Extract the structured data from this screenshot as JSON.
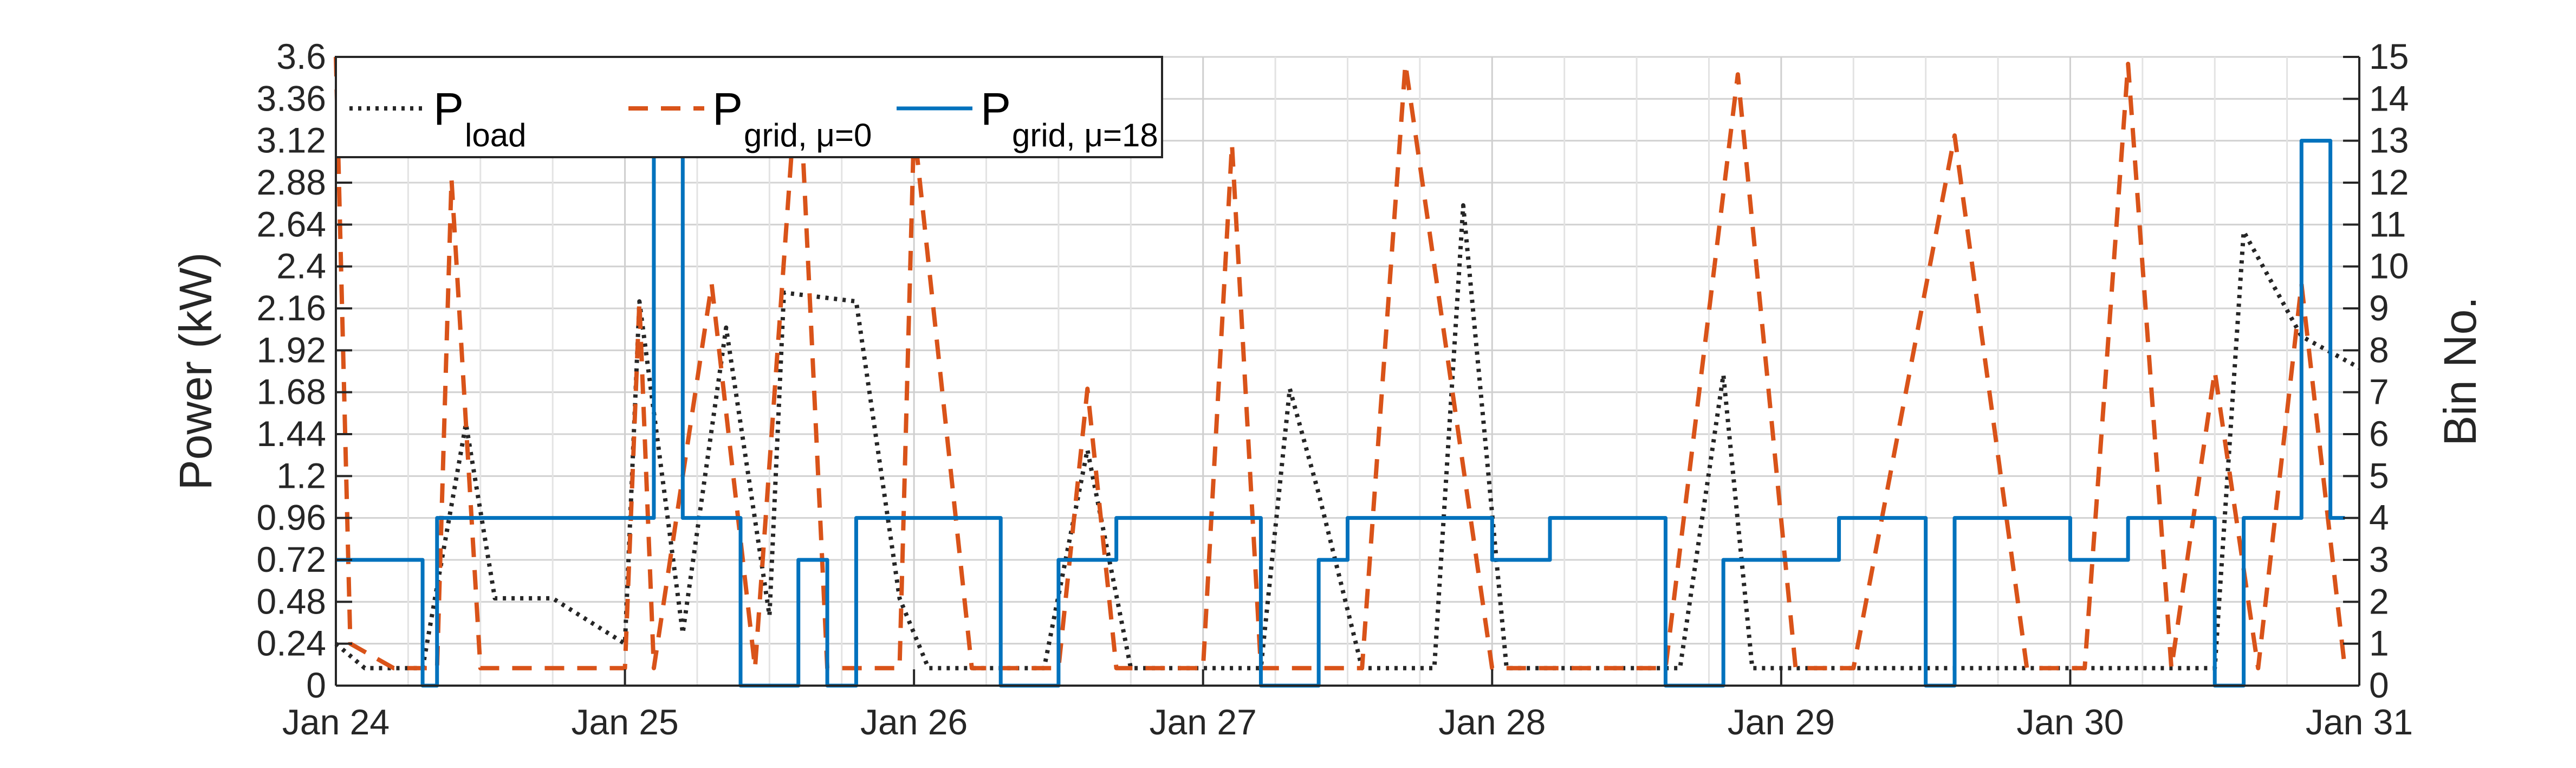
{
  "chart_data": {
    "type": "line",
    "ylabel": "Power (kW)",
    "y2label": "Bin No.",
    "xlim": [
      "Jan 24",
      "Jan 31"
    ],
    "x_ticks": [
      "Jan 24",
      "Jan 25",
      "Jan 26",
      "Jan 27",
      "Jan 28",
      "Jan 29",
      "Jan 30",
      "Jan 31"
    ],
    "ylim": [
      0,
      3.6
    ],
    "y_ticks": [
      "0",
      "0.24",
      "0.48",
      "0.72",
      "0.96",
      "1.2",
      "1.44",
      "1.68",
      "1.92",
      "2.16",
      "2.4",
      "2.64",
      "2.88",
      "3.12",
      "3.36",
      "3.6"
    ],
    "y2lim": [
      0,
      15
    ],
    "y2_ticks": [
      "0",
      "1",
      "2",
      "3",
      "4",
      "5",
      "6",
      "7",
      "8",
      "9",
      "10",
      "11",
      "12",
      "13",
      "14",
      "15"
    ],
    "grid": true,
    "legend_position": "top-left",
    "colors": {
      "load": "#262626",
      "grid_mu0": "#D95319",
      "grid_mu18": "#0072BD"
    },
    "legend": [
      {
        "key": "load",
        "main": "P",
        "sub": "load",
        "style": "dotted"
      },
      {
        "key": "grid_mu0",
        "main": "P",
        "sub": "grid, μ=0",
        "style": "dashed"
      },
      {
        "key": "grid_mu18",
        "main": "P",
        "sub": "grid, μ=18",
        "style": "solid"
      }
    ],
    "series": [
      {
        "key": "load",
        "axis": "left",
        "x": [
          0,
          0.1,
          0.3,
          0.45,
          0.55,
          0.75,
          1.0,
          1.05,
          1.2,
          1.35,
          1.5,
          1.55,
          1.8,
          1.95,
          2.05,
          2.3,
          2.45,
          2.6,
          2.75,
          2.8,
          2.95,
          3.1,
          3.2,
          3.3,
          3.4,
          3.55,
          3.7,
          3.8,
          3.9,
          4.05,
          4.2,
          4.35,
          4.5,
          4.65,
          4.8,
          4.9,
          5.05,
          5.15,
          5.3,
          5.45,
          5.6,
          5.75,
          5.9,
          6.05,
          6.2,
          6.35,
          6.45,
          6.5,
          6.6,
          6.8,
          7.0
        ],
        "y": [
          0.24,
          0.1,
          0.1,
          1.5,
          0.5,
          0.5,
          0.24,
          2.2,
          0.3,
          2.05,
          0.4,
          2.25,
          2.2,
          0.5,
          0.1,
          0.1,
          0.1,
          1.35,
          0.1,
          0.1,
          0.1,
          0.1,
          0.1,
          1.7,
          1.1,
          0.1,
          0.1,
          0.1,
          2.75,
          0.1,
          0.1,
          0.1,
          0.1,
          0.1,
          1.78,
          0.1,
          0.1,
          0.1,
          0.1,
          0.1,
          0.1,
          0.1,
          0.1,
          0.1,
          0.1,
          0.1,
          0.1,
          0.1,
          2.6,
          2.0,
          1.82
        ]
      },
      {
        "key": "grid_mu0",
        "axis": "left",
        "x": [
          0,
          0.05,
          0.2,
          0.35,
          0.4,
          0.5,
          0.6,
          0.8,
          0.9,
          1.0,
          1.05,
          1.1,
          1.3,
          1.45,
          1.6,
          1.7,
          1.85,
          1.95,
          2.0,
          2.2,
          2.5,
          2.6,
          2.7,
          3.0,
          3.1,
          3.2,
          3.4,
          3.55,
          3.7,
          4.0,
          4.4,
          4.6,
          4.85,
          5.05,
          5.25,
          5.6,
          5.85,
          6.05,
          6.2,
          6.35,
          6.5,
          6.65,
          6.8,
          6.95
        ],
        "y": [
          3.6,
          0.24,
          0.1,
          0.1,
          2.9,
          0.1,
          0.1,
          0.1,
          0.1,
          0.1,
          2.2,
          0.1,
          2.3,
          0.1,
          3.6,
          0.1,
          0.1,
          0.1,
          3.2,
          0.1,
          0.1,
          1.7,
          0.1,
          0.1,
          3.1,
          0.1,
          0.1,
          0.1,
          3.56,
          0.1,
          0.1,
          0.1,
          3.5,
          0.1,
          0.1,
          3.15,
          0.1,
          0.1,
          3.56,
          0.1,
          1.8,
          0.1,
          2.3,
          0.1
        ]
      },
      {
        "key": "grid_mu18",
        "axis": "right",
        "x": [
          0,
          0.2,
          0.3,
          0.35,
          0.5,
          0.7,
          0.9,
          1.0,
          1.1,
          1.2,
          1.3,
          1.4,
          1.6,
          1.7,
          1.8,
          2.0,
          2.3,
          2.5,
          2.7,
          2.85,
          3.0,
          3.2,
          3.4,
          3.5,
          3.6,
          3.8,
          4.0,
          4.2,
          4.4,
          4.6,
          4.8,
          5.0,
          5.2,
          5.4,
          5.5,
          5.6,
          5.8,
          6.0,
          6.2,
          6.3,
          6.5,
          6.6,
          6.7,
          6.8,
          6.9,
          6.95
        ],
        "y": [
          3,
          3,
          0,
          4,
          4,
          4,
          4,
          4,
          13,
          4,
          4,
          0,
          3,
          0,
          4,
          4,
          0,
          3,
          4,
          4,
          4,
          0,
          3,
          4,
          4,
          4,
          3,
          4,
          4,
          0,
          3,
          3,
          4,
          4,
          0,
          4,
          4,
          3,
          4,
          4,
          0,
          4,
          4,
          13,
          4,
          4
        ]
      }
    ]
  }
}
